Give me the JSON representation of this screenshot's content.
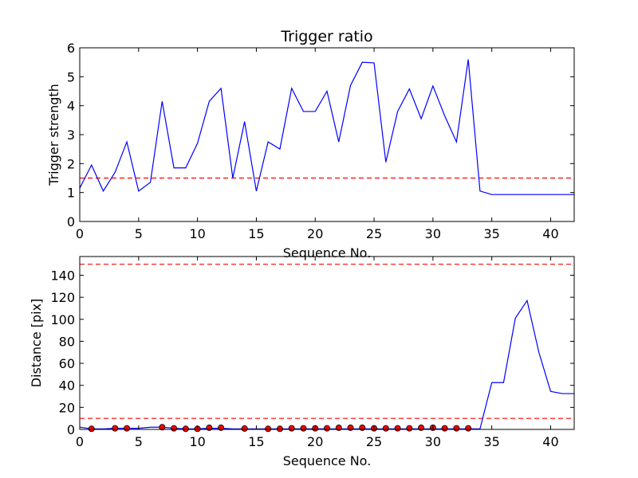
{
  "colors": {
    "line": "#0000ff",
    "reference": "#ff0000",
    "marker_fill": "#ff0000",
    "marker_edge": "#000000",
    "axes": "#000000"
  },
  "chart_data": [
    {
      "type": "line",
      "title": "Trigger ratio",
      "xlabel": "Sequence No.",
      "ylabel": "Trigger strength",
      "xlim": [
        0,
        42
      ],
      "ylim": [
        0,
        6
      ],
      "xticks": [
        0,
        5,
        10,
        15,
        20,
        25,
        30,
        35,
        40
      ],
      "yticks": [
        0,
        1,
        2,
        3,
        4,
        5,
        6
      ],
      "grid": false,
      "series": [
        {
          "x": [
            0,
            1,
            2,
            3,
            4,
            5,
            6,
            7,
            8,
            9,
            10,
            11,
            12,
            13,
            14,
            15,
            16,
            17,
            18,
            19,
            20,
            21,
            22,
            23,
            24,
            25,
            26,
            27,
            28,
            29,
            30,
            31,
            32,
            33,
            34,
            35,
            36,
            37,
            38,
            39,
            40,
            41,
            42
          ],
          "values": [
            1.15,
            1.95,
            1.05,
            1.7,
            2.75,
            1.05,
            1.35,
            4.15,
            1.85,
            1.85,
            2.7,
            4.15,
            4.6,
            1.5,
            3.45,
            1.05,
            2.75,
            2.5,
            4.6,
            3.8,
            3.8,
            4.5,
            2.75,
            4.7,
            5.5,
            5.48,
            2.05,
            3.8,
            4.58,
            3.55,
            4.68,
            3.65,
            2.75,
            5.6,
            1.05,
            0.93,
            0.93,
            0.93,
            0.93,
            0.93,
            0.93,
            0.93,
            0.93
          ]
        }
      ],
      "reference_lines": [
        1.5
      ]
    },
    {
      "type": "line",
      "title": "",
      "xlabel": "Sequence No.",
      "ylabel": "Distance [pix]",
      "xlim": [
        0,
        42
      ],
      "ylim": [
        0,
        157
      ],
      "xticks": [
        0,
        5,
        10,
        15,
        20,
        25,
        30,
        35,
        40
      ],
      "yticks": [
        0,
        20,
        40,
        60,
        80,
        100,
        120,
        140
      ],
      "grid": false,
      "series": [
        {
          "x": [
            0,
            1,
            2,
            3,
            4,
            5,
            6,
            7,
            8,
            9,
            10,
            11,
            12,
            13,
            14,
            15,
            16,
            17,
            18,
            19,
            20,
            21,
            22,
            23,
            24,
            25,
            26,
            27,
            28,
            29,
            30,
            31,
            32,
            33,
            34,
            35,
            36,
            37,
            38,
            39,
            40,
            41,
            42
          ],
          "values": [
            2,
            0.5,
            0.5,
            1,
            1,
            1,
            2,
            2,
            1,
            0.5,
            0.5,
            1,
            1,
            0.5,
            0.5,
            0.5,
            0.5,
            0.5,
            0.5,
            0.5,
            0.5,
            0.5,
            0.5,
            0.5,
            0.5,
            0.5,
            0.5,
            0.5,
            0.5,
            0.5,
            0.5,
            0.5,
            0.5,
            0.5,
            0.5,
            42.5,
            42.5,
            101,
            117,
            70,
            34.5,
            32.5,
            32.5
          ]
        }
      ],
      "markers": {
        "x": [
          1,
          3,
          4,
          7,
          8,
          9,
          10,
          11,
          12,
          14,
          16,
          17,
          18,
          19,
          20,
          21,
          22,
          23,
          24,
          25,
          26,
          27,
          28,
          29,
          30,
          31,
          32,
          33
        ],
        "values": [
          0.5,
          1,
          1,
          2,
          1,
          0.5,
          0.5,
          1.5,
          1.5,
          0.8,
          0.5,
          0.5,
          1,
          1,
          1,
          1,
          1.5,
          1.5,
          1.5,
          1,
          1,
          1,
          1,
          1.5,
          1.5,
          1,
          1,
          1
        ]
      },
      "reference_lines": [
        150,
        10
      ]
    }
  ]
}
